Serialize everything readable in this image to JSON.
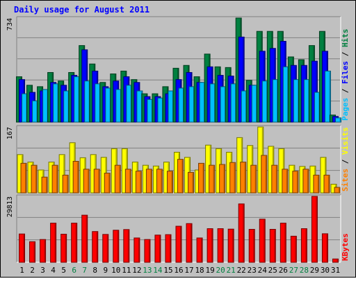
{
  "chart_data": {
    "type": "bar",
    "title": "Daily usage for August 2011",
    "days": [
      "1",
      "2",
      "3",
      "4",
      "5",
      "6",
      "7",
      "8",
      "9",
      "10",
      "11",
      "12",
      "13",
      "14",
      "15",
      "16",
      "17",
      "18",
      "19",
      "20",
      "21",
      "22",
      "23",
      "24",
      "25",
      "26",
      "27",
      "28",
      "29",
      "30",
      "31"
    ],
    "weekend_days": [
      "6",
      "7",
      "13",
      "14",
      "20",
      "21",
      "27",
      "28"
    ],
    "panels": [
      {
        "name": "top",
        "y_max_label": "734",
        "ylim": [
          0,
          734
        ],
        "right_labels": [
          {
            "text": "Pages",
            "color": "#00c0ff"
          },
          {
            "text": " / ",
            "color": "#000000"
          },
          {
            "text": "Files",
            "color": "#0000ff"
          },
          {
            "text": " / ",
            "color": "#000000"
          },
          {
            "text": "Hits",
            "color": "#008040"
          }
        ],
        "series": [
          {
            "name": "Hits",
            "color": "#008040",
            "values": [
              320,
              260,
              250,
              350,
              290,
              350,
              540,
              410,
              280,
              340,
              360,
              300,
              200,
              200,
              250,
              380,
              400,
              320,
              480,
              390,
              385,
              734,
              295,
              640,
              640,
              640,
              460,
              440,
              540,
              640,
              50
            ]
          },
          {
            "name": "Files",
            "color": "#0000ff",
            "values": [
              300,
              210,
              220,
              280,
              260,
              330,
              510,
              360,
              250,
              290,
              320,
              280,
              180,
              180,
              200,
              300,
              350,
              280,
              390,
              330,
              325,
              600,
              260,
              500,
              520,
              570,
              400,
              400,
              430,
              500,
              40
            ]
          },
          {
            "name": "Pages",
            "color": "#00c0ff",
            "values": [
              200,
              150,
              230,
              270,
              220,
              320,
              290,
              270,
              240,
              230,
              260,
              220,
              160,
              170,
              220,
              240,
              250,
              280,
              270,
              250,
              270,
              220,
              260,
              290,
              300,
              390,
              300,
              300,
              210,
              360,
              30
            ]
          }
        ]
      },
      {
        "name": "middle",
        "y_max_label": "167",
        "ylim": [
          0,
          167
        ],
        "right_labels": [
          {
            "text": "Sites",
            "color": "#ff8000"
          },
          {
            "text": " / ",
            "color": "#000000"
          },
          {
            "text": "Visits",
            "color": "#ffff00"
          }
        ],
        "series": [
          {
            "name": "Visits",
            "color": "#ffff00",
            "values": [
              97,
              78,
              58,
              78,
              97,
              127,
              89,
              97,
              90,
              112,
              112,
              78,
              70,
              68,
              78,
              103,
              90,
              58,
              121,
              112,
              103,
              140,
              120,
              167,
              118,
              112,
              70,
              67,
              68,
              90,
              22
            ]
          },
          {
            "name": "Sites",
            "color": "#ff8000",
            "values": [
              75,
              70,
              40,
              70,
              45,
              80,
              60,
              60,
              50,
              70,
              60,
              55,
              60,
              60,
              55,
              85,
              52,
              75,
              70,
              72,
              77,
              78,
              70,
              95,
              70,
              60,
              55,
              60,
              45,
              45,
              14
            ]
          }
        ]
      },
      {
        "name": "bottom",
        "y_max_label": "29813",
        "ylim": [
          0,
          29813
        ],
        "right_labels": [
          {
            "text": "KBytes",
            "color": "#ff0000"
          }
        ],
        "series": [
          {
            "name": "KBytes",
            "color": "#ff0000",
            "values": [
              12800,
              9300,
              10300,
              17700,
              12700,
              17700,
              21300,
              13900,
              12600,
              14500,
              14800,
              11000,
              10300,
              12300,
              12500,
              16300,
              17500,
              11000,
              15200,
              15200,
              15000,
              26400,
              14900,
              19500,
              14900,
              17700,
              11800,
              15200,
              29813,
              12900,
              1500
            ]
          }
        ]
      }
    ]
  }
}
